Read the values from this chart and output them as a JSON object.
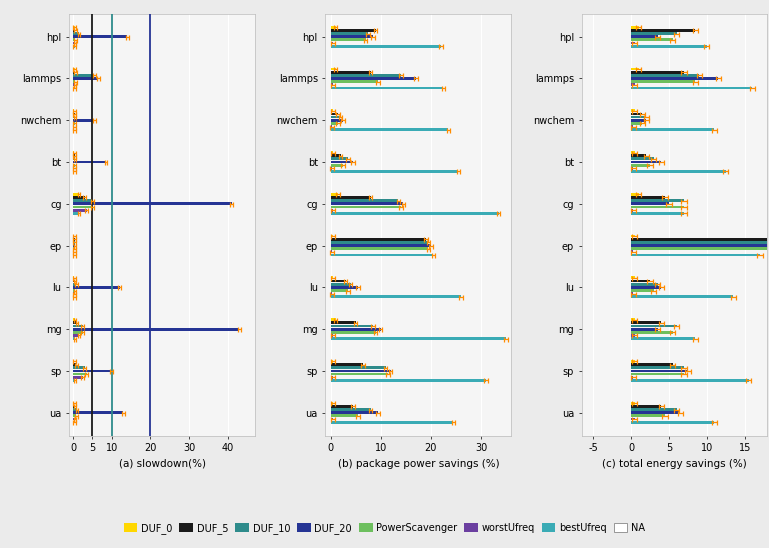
{
  "benchmarks": [
    "hpl",
    "lammps",
    "nwchem",
    "bt",
    "cg",
    "ep",
    "lu",
    "mg",
    "sp",
    "ua"
  ],
  "colors": {
    "DUF_0": "#FFD700",
    "DUF_5": "#1A1A1A",
    "DUF_10": "#2E8B8B",
    "DUF_20": "#253494",
    "PowerScavenger": "#6DBF5E",
    "worstUfreq": "#6B3FA0",
    "bestUfreq": "#3AABB5",
    "NA": "#CCCCCC"
  },
  "plot_order_top_to_bottom": [
    "DUF_0",
    "DUF_5",
    "DUF_10",
    "DUF_20",
    "PowerScavenger",
    "worstUfreq",
    "bestUfreq"
  ],
  "slowdown": {
    "hpl": {
      "DUF_0": 0.4,
      "DUF_5": 0.6,
      "DUF_10": 1.5,
      "DUF_20": 14.0,
      "PowerScavenger": 0.6,
      "worstUfreq": 0.5,
      "bestUfreq": 0.4
    },
    "lammps": {
      "DUF_0": 0.4,
      "DUF_5": 0.6,
      "DUF_10": 5.5,
      "DUF_20": 6.5,
      "PowerScavenger": 0.6,
      "worstUfreq": 0.5,
      "bestUfreq": 0.4
    },
    "nwchem": {
      "DUF_0": 0.3,
      "DUF_5": 0.4,
      "DUF_10": 0.5,
      "DUF_20": 5.5,
      "PowerScavenger": 0.4,
      "worstUfreq": 0.3,
      "bestUfreq": 0.3
    },
    "bt": {
      "DUF_0": 0.3,
      "DUF_5": 0.4,
      "DUF_10": 0.5,
      "DUF_20": 8.5,
      "PowerScavenger": 0.4,
      "worstUfreq": 0.3,
      "bestUfreq": 0.3
    },
    "cg": {
      "DUF_0": 1.5,
      "DUF_5": 3.0,
      "DUF_10": 5.0,
      "DUF_20": 41.0,
      "PowerScavenger": 5.0,
      "worstUfreq": 3.5,
      "bestUfreq": 1.5
    },
    "ep": {
      "DUF_0": 0.3,
      "DUF_5": 0.4,
      "DUF_10": 0.4,
      "DUF_20": 0.5,
      "PowerScavenger": 0.3,
      "worstUfreq": 0.3,
      "bestUfreq": 0.3
    },
    "lu": {
      "DUF_0": 0.3,
      "DUF_5": 0.5,
      "DUF_10": 0.8,
      "DUF_20": 12.0,
      "PowerScavenger": 0.5,
      "worstUfreq": 0.4,
      "bestUfreq": 0.3
    },
    "mg": {
      "DUF_0": 0.5,
      "DUF_5": 1.0,
      "DUF_10": 2.5,
      "DUF_20": 43.0,
      "PowerScavenger": 2.5,
      "worstUfreq": 1.5,
      "bestUfreq": 0.5
    },
    "sp": {
      "DUF_0": 0.3,
      "DUF_5": 0.8,
      "DUF_10": 3.0,
      "DUF_20": 10.0,
      "PowerScavenger": 3.5,
      "worstUfreq": 2.5,
      "bestUfreq": 0.5
    },
    "ua": {
      "DUF_0": 0.3,
      "DUF_5": 0.5,
      "DUF_10": 1.0,
      "DUF_20": 13.0,
      "PowerScavenger": 0.8,
      "worstUfreq": 0.5,
      "bestUfreq": 0.3
    }
  },
  "power_savings": {
    "hpl": {
      "DUF_0": 1.0,
      "DUF_5": 9.0,
      "DUF_10": 7.5,
      "DUF_20": 8.5,
      "PowerScavenger": 7.0,
      "worstUfreq": 0.5,
      "bestUfreq": 22.0
    },
    "lammps": {
      "DUF_0": 1.0,
      "DUF_5": 8.0,
      "DUF_10": 14.0,
      "DUF_20": 17.0,
      "PowerScavenger": 9.5,
      "worstUfreq": 0.5,
      "bestUfreq": 22.5
    },
    "nwchem": {
      "DUF_0": 0.5,
      "DUF_5": 1.5,
      "DUF_10": 2.0,
      "DUF_20": 2.5,
      "PowerScavenger": 1.5,
      "worstUfreq": 0.3,
      "bestUfreq": 23.5
    },
    "bt": {
      "DUF_0": 0.5,
      "DUF_5": 2.0,
      "DUF_10": 3.5,
      "DUF_20": 4.5,
      "PowerScavenger": 2.5,
      "worstUfreq": 0.3,
      "bestUfreq": 25.5
    },
    "cg": {
      "DUF_0": 1.5,
      "DUF_5": 8.0,
      "DUF_10": 13.5,
      "DUF_20": 14.5,
      "PowerScavenger": 14.0,
      "worstUfreq": 0.5,
      "bestUfreq": 33.5
    },
    "ep": {
      "DUF_0": 0.5,
      "DUF_5": 19.0,
      "DUF_10": 19.5,
      "DUF_20": 20.0,
      "PowerScavenger": 19.5,
      "worstUfreq": 0.3,
      "bestUfreq": 20.5
    },
    "lu": {
      "DUF_0": 0.5,
      "DUF_5": 3.0,
      "DUF_10": 4.0,
      "DUF_20": 5.5,
      "PowerScavenger": 3.5,
      "worstUfreq": 0.3,
      "bestUfreq": 26.0
    },
    "mg": {
      "DUF_0": 1.0,
      "DUF_5": 5.0,
      "DUF_10": 8.5,
      "DUF_20": 10.0,
      "PowerScavenger": 9.0,
      "worstUfreq": 0.5,
      "bestUfreq": 35.0
    },
    "sp": {
      "DUF_0": 0.5,
      "DUF_5": 6.5,
      "DUF_10": 11.0,
      "DUF_20": 12.0,
      "PowerScavenger": 11.5,
      "worstUfreq": 0.5,
      "bestUfreq": 31.0
    },
    "ua": {
      "DUF_0": 0.5,
      "DUF_5": 4.5,
      "DUF_10": 8.0,
      "DUF_20": 9.5,
      "PowerScavenger": 5.5,
      "worstUfreq": 0.5,
      "bestUfreq": 24.5
    }
  },
  "energy_savings": {
    "hpl": {
      "DUF_0": 1.0,
      "DUF_5": 8.5,
      "DUF_10": 6.0,
      "DUF_20": 3.5,
      "PowerScavenger": 5.5,
      "worstUfreq": 0.5,
      "bestUfreq": 10.0
    },
    "lammps": {
      "DUF_0": 1.0,
      "DUF_5": 7.0,
      "DUF_10": 9.0,
      "DUF_20": 11.5,
      "PowerScavenger": 8.5,
      "worstUfreq": 0.5,
      "bestUfreq": 16.0
    },
    "nwchem": {
      "DUF_0": 0.5,
      "DUF_5": 1.5,
      "DUF_10": 2.0,
      "DUF_20": 2.0,
      "PowerScavenger": 1.5,
      "worstUfreq": 0.3,
      "bestUfreq": 11.0
    },
    "bt": {
      "DUF_0": 0.5,
      "DUF_5": 2.0,
      "DUF_10": 3.0,
      "DUF_20": 4.0,
      "PowerScavenger": 2.5,
      "worstUfreq": 0.3,
      "bestUfreq": 12.5
    },
    "cg": {
      "DUF_0": 1.0,
      "DUF_5": 4.5,
      "DUF_10": 7.0,
      "DUF_20": 5.0,
      "PowerScavenger": 7.0,
      "worstUfreq": 0.3,
      "bestUfreq": 7.0
    },
    "ep": {
      "DUF_0": 0.5,
      "DUF_5": 18.5,
      "DUF_10": 19.0,
      "DUF_20": 19.5,
      "PowerScavenger": 18.5,
      "worstUfreq": 0.3,
      "bestUfreq": 17.0
    },
    "lu": {
      "DUF_0": 0.5,
      "DUF_5": 2.5,
      "DUF_10": 3.5,
      "DUF_20": 4.0,
      "PowerScavenger": 3.0,
      "worstUfreq": 0.3,
      "bestUfreq": 13.5
    },
    "mg": {
      "DUF_0": 0.5,
      "DUF_5": 4.0,
      "DUF_10": 6.0,
      "DUF_20": 3.5,
      "PowerScavenger": 5.5,
      "worstUfreq": 0.5,
      "bestUfreq": 8.5
    },
    "sp": {
      "DUF_0": 0.5,
      "DUF_5": 5.5,
      "DUF_10": 7.0,
      "DUF_20": 7.5,
      "PowerScavenger": 7.0,
      "worstUfreq": 0.3,
      "bestUfreq": 15.5
    },
    "ua": {
      "DUF_0": 0.5,
      "DUF_5": 4.0,
      "DUF_10": 6.0,
      "DUF_20": 6.5,
      "PowerScavenger": 4.5,
      "worstUfreq": 0.5,
      "bestUfreq": 11.0
    }
  },
  "slowdown_vlines": [
    5,
    10,
    20
  ],
  "slowdown_vline_colors": [
    "#1A1A1A",
    "#2E8B8B",
    "#253494"
  ],
  "subplot_titles": [
    "(a) slowdown(%)",
    "(b) package power savings (%)",
    "(c) total energy savings (%)"
  ],
  "slowdown_xlim": [
    -1,
    47
  ],
  "power_xlim": [
    -1,
    36
  ],
  "energy_xlim": [
    -6.5,
    18
  ],
  "slowdown_xticks": [
    0,
    5,
    10,
    20,
    30,
    40
  ],
  "power_xticks": [
    0,
    10,
    20,
    30
  ],
  "energy_xticks": [
    -5,
    0,
    5,
    10,
    15
  ],
  "bg_color": "#F5F5F5",
  "grid_color": "#FFFFFF",
  "fig_bg_color": "#EBEBEB",
  "legend_labels": [
    "DUF_0",
    "DUF_5",
    "DUF_10",
    "DUF_20",
    "PowerScavenger",
    "worstUfreq",
    "bestUfreq",
    "NA"
  ]
}
